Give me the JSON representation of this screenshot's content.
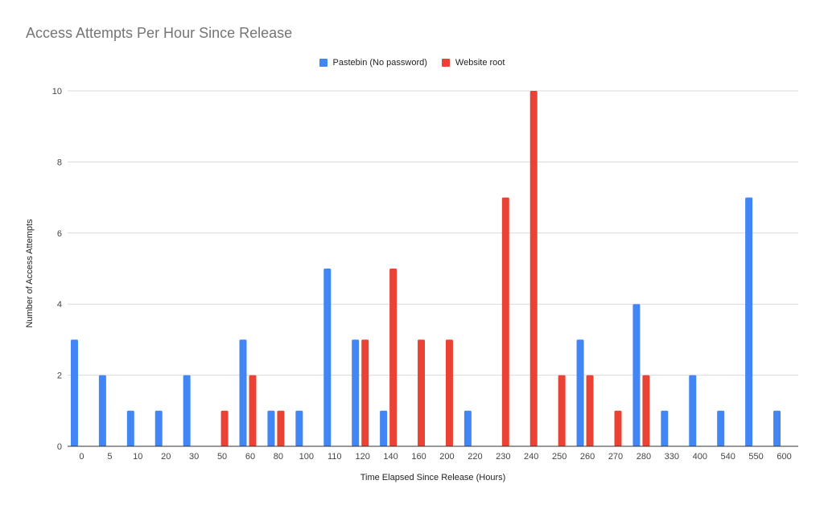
{
  "chart_data": {
    "type": "bar",
    "title": "Access Attempts Per Hour Since Release",
    "xlabel": "Time Elapsed Since Release (Hours)",
    "ylabel": "Number of Access Attempts",
    "ylim": [
      0,
      10
    ],
    "yticks": [
      0,
      2,
      4,
      6,
      8,
      10
    ],
    "grid": true,
    "legend_position": "top",
    "categories": [
      "0",
      "5",
      "10",
      "20",
      "30",
      "50",
      "60",
      "80",
      "100",
      "110",
      "120",
      "140",
      "160",
      "200",
      "220",
      "230",
      "240",
      "250",
      "260",
      "270",
      "280",
      "330",
      "400",
      "540",
      "550",
      "600"
    ],
    "series": [
      {
        "name": "Pastebin (No password)",
        "color": "#4285f4",
        "values": [
          3,
          2,
          1,
          1,
          2,
          0,
          3,
          1,
          1,
          5,
          3,
          1,
          0,
          0,
          1,
          0,
          0,
          0,
          3,
          0,
          4,
          1,
          2,
          1,
          7,
          1
        ]
      },
      {
        "name": "Website root",
        "color": "#ea4335",
        "values": [
          0,
          0,
          0,
          0,
          0,
          1,
          2,
          1,
          0,
          0,
          3,
          5,
          3,
          3,
          0,
          7,
          10,
          2,
          2,
          1,
          2,
          0,
          0,
          0,
          0,
          0
        ]
      }
    ]
  }
}
